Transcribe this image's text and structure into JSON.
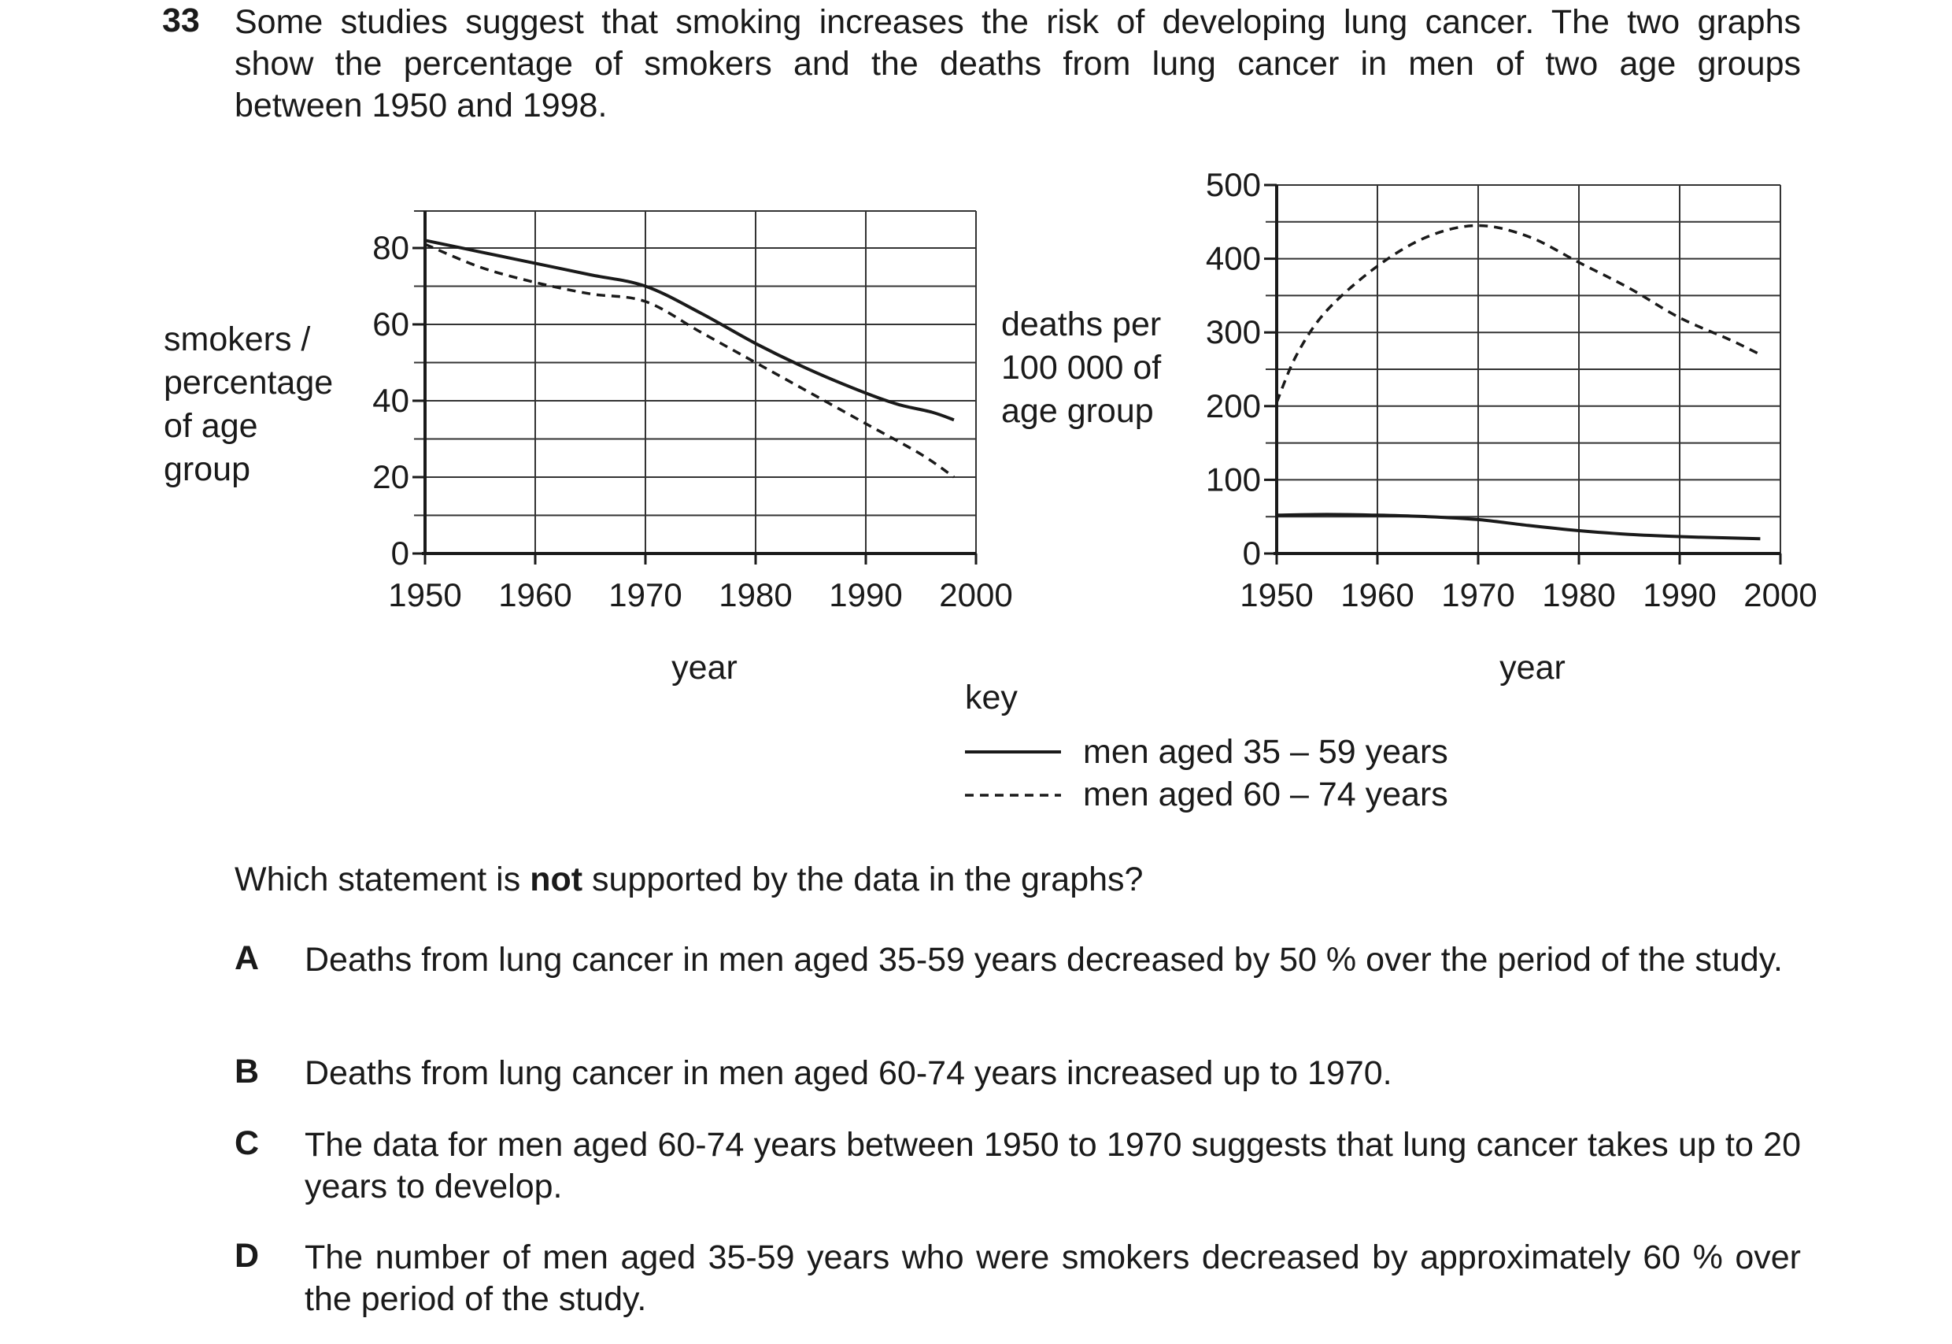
{
  "question": {
    "number": "33",
    "stem_lines": [
      "Some studies suggest that smoking increases the risk of developing lung cancer. The two graphs",
      "show the percentage of smokers and the deaths from lung cancer in men of two age groups",
      "between 1950 and 1998."
    ],
    "prompt_before": "Which statement is ",
    "prompt_bold": "not",
    "prompt_after": " supported by the data in the graphs?",
    "options": [
      {
        "letter": "A",
        "text": "Deaths from lung cancer in men aged 35-59 years decreased by 50 % over the period of the study."
      },
      {
        "letter": "B",
        "text": "Deaths from lung cancer in men aged 60-74 years increased up to 1970."
      },
      {
        "letter": "C",
        "text": "The data for men aged 60-74 years between 1950 to 1970 suggests that lung cancer takes up to 20 years to develop."
      },
      {
        "letter": "D",
        "text": "The number of men aged 35-59 years who were smokers decreased by approximately 60 % over the period of the study."
      }
    ]
  },
  "key": {
    "title": "key",
    "entries": [
      "men aged 35 – 59 years",
      "men aged 60 – 74 years"
    ]
  },
  "chart_data": [
    {
      "type": "line",
      "ylabel_lines": [
        "smokers /",
        "percentage",
        "of age",
        "group"
      ],
      "xlabel": "year",
      "xlim": [
        1950,
        2000
      ],
      "ylim": [
        0,
        90
      ],
      "xticks": [
        1950,
        1960,
        1970,
        1980,
        1990,
        2000
      ],
      "yticks": [
        0,
        20,
        40,
        60,
        80
      ],
      "grid": true,
      "series": [
        {
          "name": "men aged 35 – 59 years",
          "style": "solid",
          "x": [
            1950,
            1955,
            1960,
            1965,
            1970,
            1975,
            1980,
            1985,
            1990,
            1993,
            1996,
            1998
          ],
          "y": [
            82,
            79,
            76,
            73,
            70,
            63,
            55,
            48,
            42,
            39,
            37,
            35
          ]
        },
        {
          "name": "men aged 60 – 74 years",
          "style": "dashed",
          "x": [
            1950,
            1955,
            1960,
            1965,
            1970,
            1975,
            1980,
            1985,
            1990,
            1995,
            1998
          ],
          "y": [
            81,
            75,
            71,
            68,
            66,
            58,
            50,
            42,
            34,
            26,
            20
          ]
        }
      ]
    },
    {
      "type": "line",
      "ylabel_lines": [
        "deaths per",
        "100 000 of",
        "age group"
      ],
      "xlabel": "year",
      "xlim": [
        1950,
        2000
      ],
      "ylim": [
        0,
        500
      ],
      "xticks": [
        1950,
        1960,
        1970,
        1980,
        1990,
        2000
      ],
      "yticks": [
        0,
        100,
        200,
        300,
        400,
        500
      ],
      "grid": true,
      "series": [
        {
          "name": "men aged 35 – 59 years",
          "style": "solid",
          "x": [
            1950,
            1955,
            1960,
            1965,
            1970,
            1975,
            1980,
            1985,
            1990,
            1995,
            1998
          ],
          "y": [
            52,
            53,
            52,
            50,
            46,
            38,
            31,
            26,
            23,
            21,
            20
          ]
        },
        {
          "name": "men aged 60 – 74 years",
          "style": "dashed",
          "x": [
            1950,
            1952,
            1955,
            1960,
            1965,
            1970,
            1975,
            1980,
            1985,
            1990,
            1995,
            1998
          ],
          "y": [
            205,
            270,
            330,
            390,
            430,
            445,
            430,
            395,
            360,
            320,
            290,
            270
          ]
        }
      ]
    }
  ]
}
